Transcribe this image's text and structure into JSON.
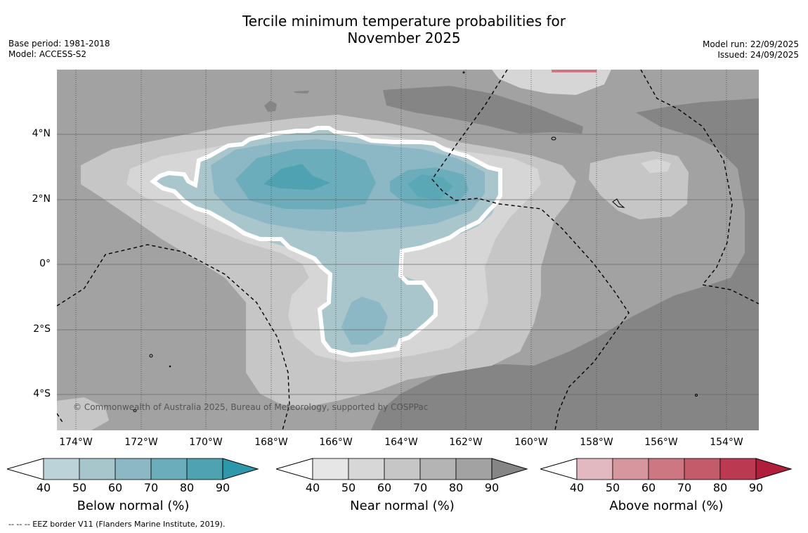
{
  "title_line1": "Tercile minimum temperature probabilities for",
  "title_line2": "November 2025",
  "meta": {
    "base_period": "Base period: 1981-2018",
    "model": "Model: ACCESS-S2",
    "model_run": "Model run: 22/09/2025",
    "issued": "Issued: 24/09/2025"
  },
  "map": {
    "lat_ticks": [
      "4°N",
      "2°N",
      "0°",
      "2°S",
      "4°S"
    ],
    "lon_ticks": [
      "174°W",
      "172°W",
      "170°W",
      "168°W",
      "166°W",
      "164°W",
      "162°W",
      "160°W",
      "158°W",
      "156°W",
      "154°W"
    ],
    "copyright": "© Commonwealth of Australia 2025, Bureau of Meteorology, supported by COSPPac"
  },
  "colorbars": [
    {
      "label": "Below normal (%)",
      "ticks": [
        "40",
        "50",
        "60",
        "70",
        "80",
        "90"
      ],
      "colors": [
        "#bcd3d9",
        "#a7c6cb",
        "#8cb7c4",
        "#6cadbb",
        "#4ea2b1",
        "#2f97ac"
      ]
    },
    {
      "label": "Near normal (%)",
      "ticks": [
        "40",
        "50",
        "60",
        "70",
        "80",
        "90"
      ],
      "colors": [
        "#e6e6e6",
        "#d7d7d7",
        "#c6c6c6",
        "#b4b4b4",
        "#a2a2a2",
        "#858585"
      ]
    },
    {
      "label": "Above normal (%)",
      "ticks": [
        "40",
        "50",
        "60",
        "70",
        "80",
        "90"
      ],
      "colors": [
        "#e2b9c0",
        "#d7959e",
        "#cc7781",
        "#c35b6b",
        "#bb3a52",
        "#b01e3c"
      ]
    }
  ],
  "footnote": "-- -- -- EEZ border V11 (Flanders Marine Institute, 2019)."
}
